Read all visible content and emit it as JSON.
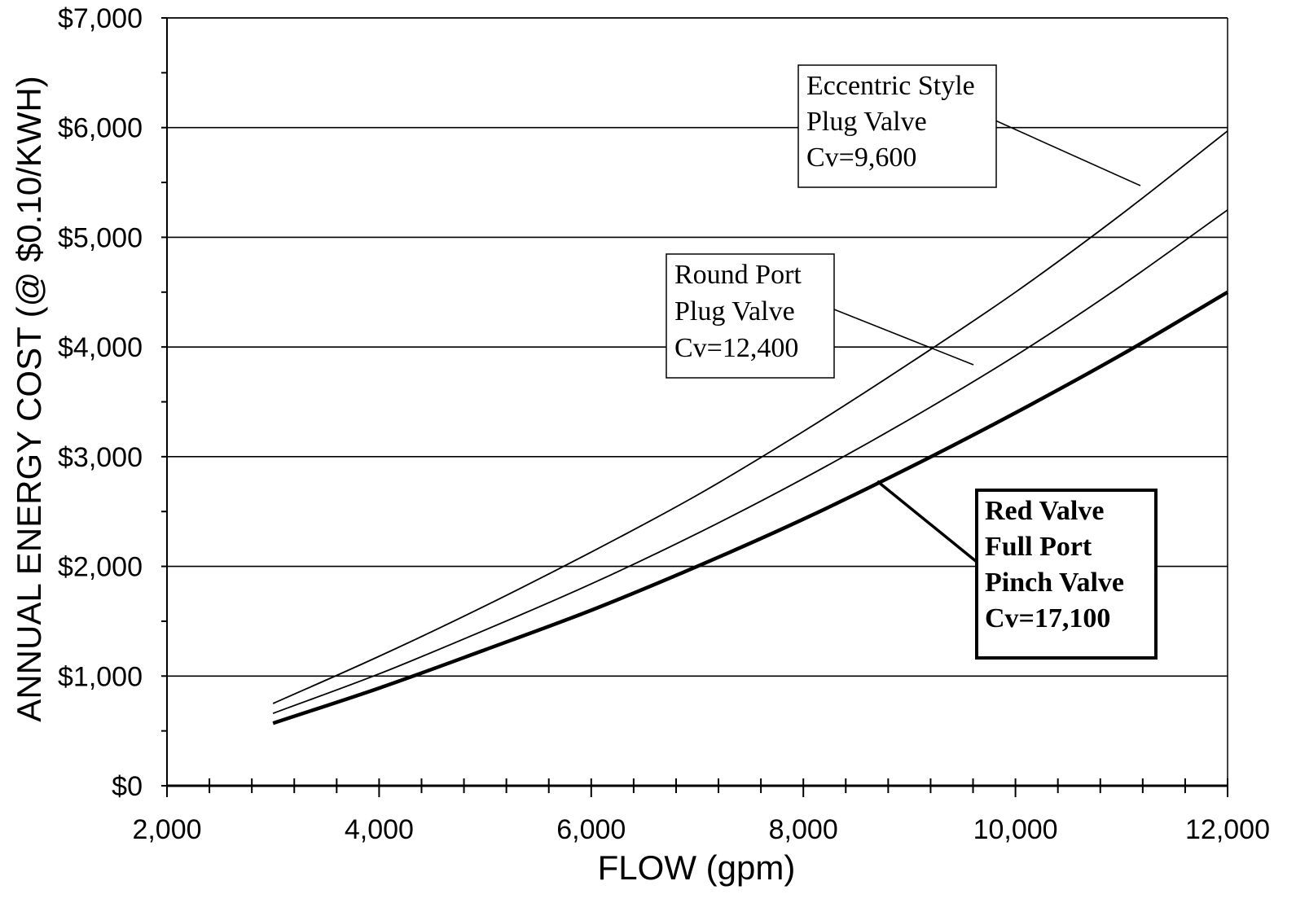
{
  "chart_data": {
    "type": "line",
    "title": "",
    "xlabel": "FLOW (gpm)",
    "ylabel": "ANNUAL ENERGY COST (@ $0.10/KWH)",
    "xlim": [
      2000,
      12000
    ],
    "ylim": [
      0,
      7000
    ],
    "x_ticks": [
      2000,
      4000,
      6000,
      8000,
      10000,
      12000
    ],
    "x_tick_labels": [
      "2,000",
      "4,000",
      "6,000",
      "8,000",
      "10,000",
      "12,000"
    ],
    "y_ticks": [
      0,
      1000,
      2000,
      3000,
      4000,
      5000,
      6000,
      7000
    ],
    "y_tick_labels": [
      "$0",
      "$1,000",
      "$2,000",
      "$3,000",
      "$4,000",
      "$5,000",
      "$6,000",
      "$7,000"
    ],
    "grid": "horizontal",
    "legend": "none",
    "series": [
      {
        "key": "eccentric",
        "x": [
          3000,
          4000,
          5000,
          6000,
          7000,
          8000,
          9000,
          10000,
          11000,
          12000
        ],
        "values": [
          750,
          1180,
          1640,
          2130,
          2650,
          3230,
          3850,
          4500,
          5210,
          5970
        ],
        "color": "#000000",
        "weight": "thin"
      },
      {
        "key": "roundport",
        "x": [
          3000,
          4000,
          5000,
          6000,
          7000,
          8000,
          9000,
          10000,
          11000,
          12000
        ],
        "values": [
          660,
          1020,
          1420,
          1840,
          2300,
          2800,
          3340,
          3920,
          4560,
          5250
        ],
        "color": "#000000",
        "weight": "thin"
      },
      {
        "key": "redvalve",
        "x": [
          3000,
          4000,
          5000,
          6000,
          7000,
          8000,
          9000,
          10000,
          11000,
          12000
        ],
        "values": [
          570,
          890,
          1240,
          1600,
          2000,
          2430,
          2900,
          3400,
          3930,
          4500
        ],
        "color": "#000000",
        "weight": "thick"
      }
    ],
    "annotations": [
      {
        "key": "eccentric",
        "lines": [
          "Eccentric Style",
          "Plug Valve",
          "Cv=9,600"
        ],
        "bold": false
      },
      {
        "key": "roundport",
        "lines": [
          "Round Port",
          "Plug Valve",
          "Cv=12,400"
        ],
        "bold": false
      },
      {
        "key": "redvalve",
        "lines": [
          "Red Valve",
          "Full Port",
          "Pinch Valve",
          "Cv=17,100"
        ],
        "bold": true
      }
    ]
  }
}
